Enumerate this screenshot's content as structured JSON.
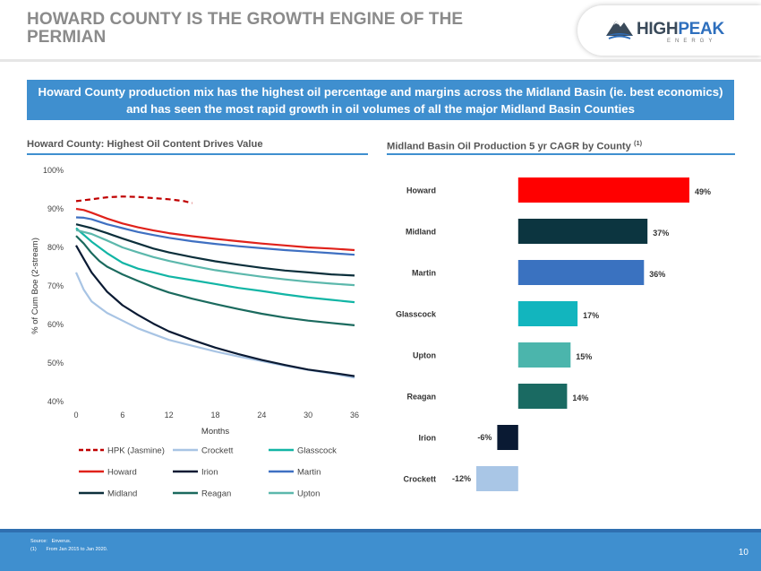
{
  "slide": {
    "title": "HOWARD COUNTY IS THE GROWTH ENGINE OF THE PERMIAN",
    "logo": {
      "main": "HIGH",
      "accent": "PEAK",
      "sub": "ENERGY"
    },
    "banner": "Howard County production mix has the highest oil percentage and margins across the Midland Basin (ie. best economics) and has seen the most rapid growth in oil volumes of all the major Midland Basin Counties",
    "left_title": "Howard County: Highest Oil Content Drives Value",
    "right_title": "Midland Basin Oil Production 5 yr CAGR by County",
    "right_title_note": "(1)",
    "source_label": "Source:",
    "source_text": "Enverus.",
    "footnote_marker": "(1)",
    "footnote_text": "From Jan 2015 to Jan 2020.",
    "page_number": "10"
  },
  "colors": {
    "title": "#8b8b8b",
    "accent_blue": "#3f8fcf"
  },
  "chart_data": [
    {
      "type": "line",
      "title": "Howard County: Highest Oil Content Drives Value",
      "xlabel": "Months",
      "ylabel": "% of Cum Boe (2-stream)",
      "xlim": [
        0,
        36
      ],
      "ylim": [
        40,
        100
      ],
      "xticks": [
        "0",
        "6",
        "12",
        "18",
        "24",
        "30",
        "36"
      ],
      "yticks": [
        "40%",
        "50%",
        "60%",
        "70%",
        "80%",
        "90%",
        "100%"
      ],
      "series": [
        {
          "name": "HPK (Jasmine)",
          "color": "#c00000",
          "dash": true,
          "x": [
            0,
            2,
            4,
            6,
            8,
            10,
            12,
            14,
            15
          ],
          "y": [
            92,
            92.5,
            93,
            93.2,
            93.1,
            92.8,
            92.5,
            92,
            91.5
          ]
        },
        {
          "name": "Crockett",
          "color": "#a8c4e4",
          "dash": false,
          "x": [
            0,
            1,
            2,
            3,
            4,
            6,
            8,
            10,
            12,
            15,
            18,
            21,
            24,
            27,
            30,
            33,
            36
          ],
          "y": [
            73.5,
            69,
            66,
            64.5,
            63,
            61,
            59,
            57.5,
            56,
            54.5,
            53,
            51.7,
            50.5,
            49.3,
            48.2,
            47.3,
            46.2
          ]
        },
        {
          "name": "Glasscock",
          "color": "#12b5a5",
          "dash": false,
          "x": [
            0,
            2,
            4,
            6,
            8,
            10,
            12,
            15,
            18,
            21,
            24,
            27,
            30,
            33,
            36
          ],
          "y": [
            85,
            81.5,
            78.5,
            76,
            74.5,
            73.5,
            72.5,
            71.5,
            70.5,
            69.5,
            68.7,
            67.8,
            67,
            66.4,
            65.8
          ]
        },
        {
          "name": "Howard",
          "color": "#e0221b",
          "dash": false,
          "x": [
            0,
            1,
            2,
            4,
            6,
            8,
            10,
            12,
            15,
            18,
            21,
            24,
            27,
            30,
            33,
            36
          ],
          "y": [
            90,
            89.7,
            89,
            87.5,
            86.2,
            85.2,
            84.4,
            83.7,
            82.9,
            82.2,
            81.6,
            81,
            80.5,
            80,
            79.7,
            79.3
          ]
        },
        {
          "name": "Irion",
          "color": "#0a1a33",
          "dash": false,
          "x": [
            0,
            1,
            2,
            3,
            4,
            6,
            8,
            10,
            12,
            15,
            18,
            21,
            24,
            27,
            30,
            33,
            36
          ],
          "y": [
            80.5,
            77,
            73.5,
            71,
            68.5,
            65,
            62.5,
            60.2,
            58.2,
            56,
            54,
            52.3,
            50.8,
            49.5,
            48.3,
            47.5,
            46.6
          ]
        },
        {
          "name": "Martin",
          "color": "#3f70c2",
          "dash": false,
          "x": [
            0,
            1,
            2,
            4,
            6,
            8,
            10,
            12,
            15,
            18,
            21,
            24,
            27,
            30,
            33,
            36
          ],
          "y": [
            87.8,
            87.7,
            87.3,
            86,
            85,
            84,
            83.2,
            82.5,
            81.6,
            80.9,
            80.3,
            79.8,
            79.3,
            78.9,
            78.5,
            78.1
          ]
        },
        {
          "name": "Midland",
          "color": "#0c2f3b",
          "dash": false,
          "x": [
            0,
            2,
            4,
            6,
            8,
            10,
            12,
            15,
            18,
            21,
            24,
            27,
            30,
            33,
            36
          ],
          "y": [
            86,
            85,
            83.7,
            82.3,
            81,
            79.7,
            78.7,
            77.5,
            76.4,
            75.5,
            74.7,
            74,
            73.5,
            73,
            72.7
          ]
        },
        {
          "name": "Reagan",
          "color": "#1b6a5e",
          "dash": false,
          "x": [
            0,
            1,
            2,
            3,
            4,
            6,
            8,
            10,
            12,
            15,
            18,
            21,
            24,
            27,
            30,
            33,
            36
          ],
          "y": [
            83,
            81,
            78.5,
            76.5,
            75,
            73,
            71.3,
            69.7,
            68.3,
            66.7,
            65.3,
            64,
            62.8,
            61.8,
            61,
            60.4,
            59.8
          ]
        },
        {
          "name": "Upton",
          "color": "#5cb8ac",
          "dash": false,
          "x": [
            0,
            2,
            4,
            6,
            8,
            10,
            12,
            15,
            18,
            21,
            24,
            27,
            30,
            33,
            36
          ],
          "y": [
            84.5,
            83.5,
            81.8,
            80,
            78.7,
            77.5,
            76.5,
            75.2,
            74.1,
            73.2,
            72.4,
            71.7,
            71.1,
            70.6,
            70.2
          ]
        }
      ],
      "legend": {
        "placement": "bottom",
        "order": [
          "HPK (Jasmine)",
          "Crockett",
          "Glasscock",
          "Howard",
          "Irion",
          "Martin",
          "Midland",
          "Reagan",
          "Upton"
        ]
      }
    },
    {
      "type": "bar",
      "orientation": "horizontal",
      "title": "Midland Basin Oil Production 5 yr CAGR by County",
      "categories": [
        "Howard",
        "Midland",
        "Martin",
        "Glasscock",
        "Upton",
        "Reagan",
        "Irion",
        "Crockett"
      ],
      "values": [
        49,
        37,
        36,
        17,
        15,
        14,
        -6,
        -12
      ],
      "labels": [
        "49%",
        "37%",
        "36%",
        "17%",
        "15%",
        "14%",
        "-6%",
        "-12%"
      ],
      "colors": [
        "#ff0000",
        "#0c3540",
        "#3a72c0",
        "#12b5be",
        "#4bb5ac",
        "#1a6a62",
        "#0a1a33",
        "#a9c6e6"
      ],
      "xlim": [
        -12,
        49
      ]
    }
  ]
}
